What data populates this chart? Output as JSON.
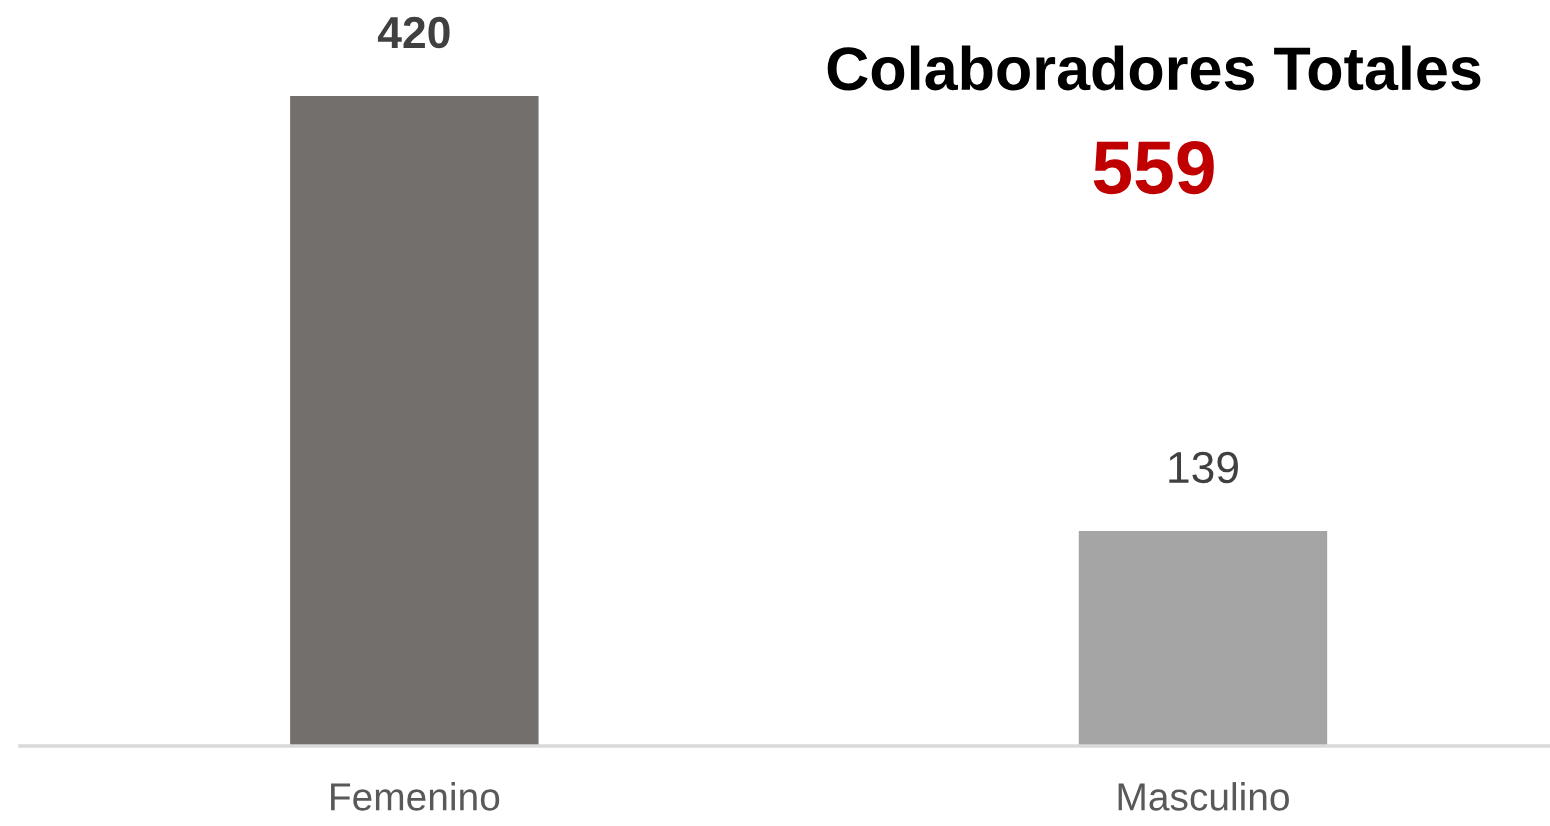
{
  "chart_data": {
    "type": "bar",
    "title": "Colaboradores Totales",
    "subtitle": "559",
    "categories": [
      "Femenino",
      "Masculino"
    ],
    "values": [
      420,
      139
    ],
    "colors": [
      "#736f6d",
      "#a5a5a5"
    ],
    "data_labels": true,
    "grid": false,
    "legend": false
  }
}
